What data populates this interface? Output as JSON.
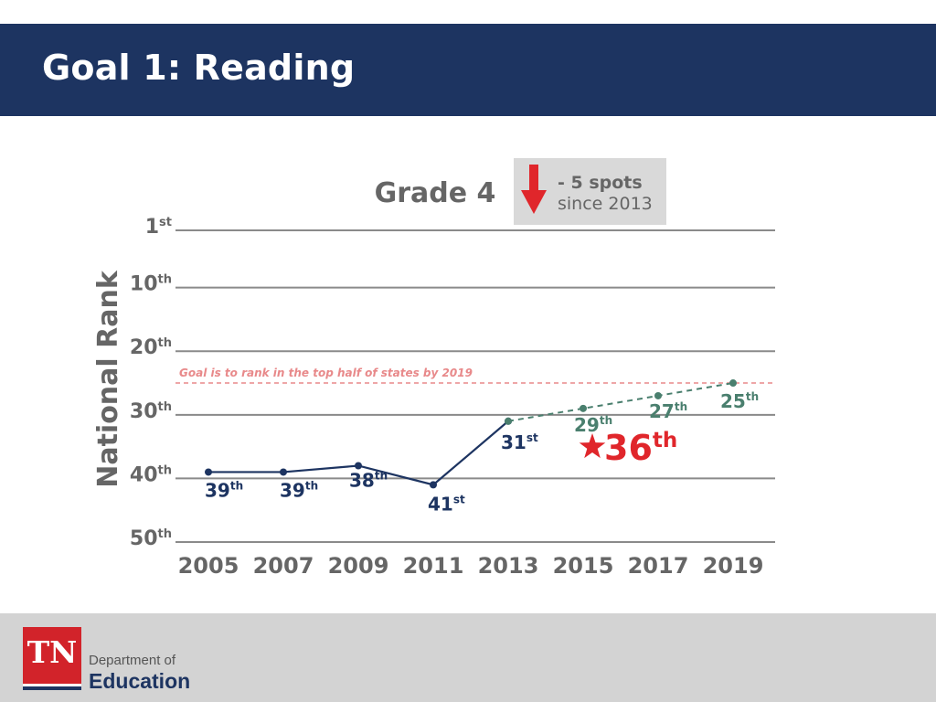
{
  "header": {
    "title": "Goal 1: Reading"
  },
  "chart_data": {
    "type": "line",
    "title": "Grade 4",
    "ylabel": "National Rank",
    "y_axis_inverted": true,
    "ylim": [
      1,
      50
    ],
    "y_ticks": [
      {
        "value": 1,
        "num": "1",
        "suffix": "st"
      },
      {
        "value": 10,
        "num": "10",
        "suffix": "th"
      },
      {
        "value": 20,
        "num": "20",
        "suffix": "th"
      },
      {
        "value": 30,
        "num": "30",
        "suffix": "th"
      },
      {
        "value": 40,
        "num": "40",
        "suffix": "th"
      },
      {
        "value": 50,
        "num": "50",
        "suffix": "th"
      }
    ],
    "categories": [
      "2005",
      "2007",
      "2009",
      "2011",
      "2013",
      "2015",
      "2017",
      "2019"
    ],
    "series": [
      {
        "style": "solid",
        "color": "#1d3461",
        "x": [
          "2005",
          "2007",
          "2009",
          "2011",
          "2013"
        ],
        "values": [
          39,
          39,
          38,
          41,
          31
        ],
        "labels": [
          {
            "num": "39",
            "suffix": "th"
          },
          {
            "num": "39",
            "suffix": "th"
          },
          {
            "num": "38",
            "suffix": "th"
          },
          {
            "num": "41",
            "suffix": "st"
          },
          {
            "num": "31",
            "suffix": "st"
          }
        ]
      },
      {
        "style": "dashed",
        "color": "#4a7f6e",
        "x": [
          "2013",
          "2015",
          "2017",
          "2019"
        ],
        "values": [
          31,
          29,
          27,
          25
        ],
        "labels": [
          null,
          {
            "num": "29",
            "suffix": "th"
          },
          {
            "num": "27",
            "suffix": "th"
          },
          {
            "num": "25",
            "suffix": "th"
          }
        ]
      }
    ],
    "goal_line": {
      "value": 25,
      "label": "Goal is to rank in the top half of states by 2019",
      "color": "#e8898a"
    },
    "highlight": {
      "x": "2015",
      "num": "36",
      "suffix": "th",
      "color": "#e0262b"
    },
    "callout": {
      "line1": "- 5 spots",
      "line2": "since 2013",
      "arrow_color": "#e0262b",
      "background": "#d9d9d9"
    },
    "grid": true
  },
  "footer": {
    "logo_text": "TN",
    "department_line1": "Department of",
    "department_line2": "Education"
  }
}
